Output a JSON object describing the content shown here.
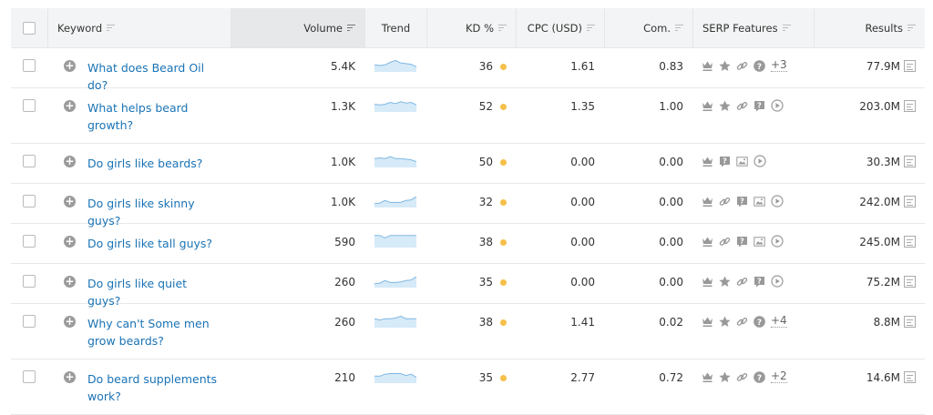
{
  "header": {
    "keyword": "Keyword",
    "volume": "Volume",
    "trend": "Trend",
    "kd": "KD %",
    "cpc": "CPC (USD)",
    "com": "Com.",
    "serp": "SERP Features",
    "results": "Results"
  },
  "colors": {
    "link": "#1a73b5",
    "kd_dot": "#f5c04a",
    "trend_fill": "#d6eaf8",
    "trend_line": "#7fb7e3"
  },
  "rows": [
    {
      "keyword_l1": "What does Beard Oil do?",
      "keyword_l2": "",
      "volume": "5.4K",
      "trend": [
        0.55,
        0.5,
        0.55,
        0.75,
        0.9,
        0.7,
        0.65,
        0.6,
        0.4
      ],
      "kd": "36",
      "cpc": "1.61",
      "com": "0.83",
      "serp": [
        "crown",
        "star",
        "link",
        "question-circle"
      ],
      "more": "+3",
      "results": "77.9M"
    },
    {
      "keyword_l1": "What helps beard",
      "keyword_l2": "growth?",
      "volume": "1.3K",
      "trend": [
        0.6,
        0.55,
        0.6,
        0.75,
        0.65,
        0.8,
        0.7,
        0.75,
        0.55
      ],
      "kd": "52",
      "cpc": "1.35",
      "com": "1.00",
      "serp": [
        "crown",
        "star",
        "link",
        "question-bubble",
        "play"
      ],
      "more": "",
      "results": "203.0M"
    },
    {
      "keyword_l1": "Do girls like beards?",
      "keyword_l2": "",
      "volume": "1.0K",
      "trend": [
        0.7,
        0.75,
        0.7,
        0.85,
        0.7,
        0.7,
        0.65,
        0.6,
        0.45
      ],
      "kd": "50",
      "cpc": "0.00",
      "com": "0.00",
      "serp": [
        "crown",
        "question-bubble",
        "image",
        "play"
      ],
      "more": "",
      "results": "30.3M"
    },
    {
      "keyword_l1": "Do girls like skinny guys?",
      "keyword_l2": "",
      "volume": "1.0K",
      "trend": [
        0.3,
        0.35,
        0.55,
        0.4,
        0.4,
        0.4,
        0.55,
        0.6,
        0.85
      ],
      "kd": "32",
      "cpc": "0.00",
      "com": "0.00",
      "serp": [
        "crown",
        "link",
        "question-bubble",
        "image",
        "play"
      ],
      "more": "",
      "results": "242.0M"
    },
    {
      "keyword_l1": "Do girls like tall guys?",
      "keyword_l2": "",
      "volume": "590",
      "trend": [
        0.95,
        0.95,
        0.75,
        0.95,
        0.95,
        0.95,
        0.95,
        0.95,
        0.95
      ],
      "kd": "38",
      "cpc": "0.00",
      "com": "0.00",
      "serp": [
        "crown",
        "link",
        "question-bubble",
        "image",
        "play"
      ],
      "more": "",
      "results": "245.0M"
    },
    {
      "keyword_l1": "Do girls like quiet guys?",
      "keyword_l2": "",
      "volume": "260",
      "trend": [
        0.3,
        0.35,
        0.55,
        0.4,
        0.4,
        0.45,
        0.55,
        0.6,
        0.85
      ],
      "kd": "35",
      "cpc": "0.00",
      "com": "0.00",
      "serp": [
        "crown",
        "star",
        "link",
        "question-bubble",
        "play"
      ],
      "more": "",
      "results": "75.2M"
    },
    {
      "keyword_l1": "Why can't Some men",
      "keyword_l2": "grow beards?",
      "volume": "260",
      "trend": [
        0.7,
        0.6,
        0.7,
        0.7,
        0.75,
        0.9,
        0.7,
        0.7,
        0.7
      ],
      "kd": "38",
      "cpc": "1.41",
      "com": "0.02",
      "serp": [
        "crown",
        "star",
        "link",
        "question-circle"
      ],
      "more": "+4",
      "results": "8.8M"
    },
    {
      "keyword_l1": "Do beard supplements",
      "keyword_l2": "work?",
      "volume": "210",
      "trend": [
        0.55,
        0.55,
        0.7,
        0.75,
        0.75,
        0.75,
        0.6,
        0.7,
        0.45
      ],
      "kd": "35",
      "cpc": "2.77",
      "com": "0.72",
      "serp": [
        "crown",
        "star",
        "link",
        "question-circle"
      ],
      "more": "+2",
      "results": "14.6M"
    }
  ]
}
